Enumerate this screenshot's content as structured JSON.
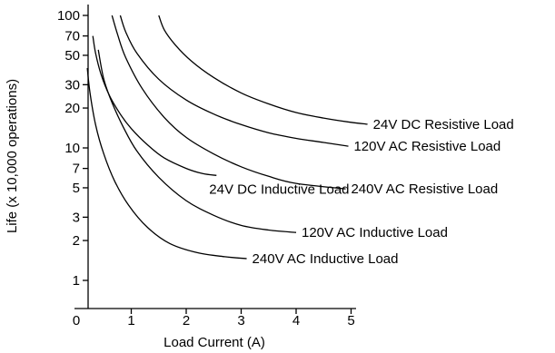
{
  "chart_data": {
    "type": "line",
    "xlabel": "Load Current (A)",
    "ylabel": "Life (x 10,000 operations)",
    "xlim": [
      0,
      5.3
    ],
    "ylim": [
      0.7,
      130
    ],
    "yscale": "log",
    "grid": false,
    "legend": "none",
    "x_ticks": [
      0,
      1,
      2,
      3,
      4,
      5
    ],
    "y_ticks": [
      1,
      2,
      3,
      5,
      7,
      10,
      20,
      30,
      50,
      70,
      100
    ],
    "series": [
      {
        "name": "24V DC  Resistive Load",
        "x": [
          1.5,
          1.6,
          1.8,
          2.1,
          2.5,
          3.0,
          3.5,
          4.0,
          4.5,
          5.0,
          5.3
        ],
        "y": [
          100,
          78,
          60,
          45,
          34,
          26,
          21.5,
          18.5,
          16.8,
          15.6,
          15.1
        ]
      },
      {
        "name": "120V AC  Resistive Load",
        "x": [
          0.8,
          0.9,
          1.1,
          1.5,
          2.0,
          2.5,
          3.0,
          3.5,
          4.0,
          4.5,
          4.95
        ],
        "y": [
          100,
          75,
          52,
          33,
          23,
          18,
          15,
          13,
          11.8,
          11,
          10.3
        ]
      },
      {
        "name": "240V AC Resistive Load",
        "x": [
          0.65,
          0.75,
          0.9,
          1.2,
          1.6,
          2.0,
          2.5,
          3.0,
          3.5,
          4.0,
          4.9
        ],
        "y": [
          100,
          72,
          48,
          28,
          17,
          12,
          9,
          7.2,
          6.1,
          5.4,
          4.9
        ]
      },
      {
        "name": "24V DC Inductive Load",
        "x": [
          0.3,
          0.35,
          0.45,
          0.6,
          0.8,
          1.0,
          1.3,
          1.6,
          2.0,
          2.3,
          2.55
        ],
        "y": [
          70,
          52,
          36,
          25,
          18,
          14,
          10.5,
          8.4,
          7,
          6.4,
          6.2
        ]
      },
      {
        "name": "120V AC Inductive Load",
        "x": [
          0.4,
          0.5,
          0.65,
          0.85,
          1.1,
          1.5,
          2.0,
          2.5,
          3.0,
          3.5,
          4.0
        ],
        "y": [
          55,
          33,
          22,
          14.5,
          9.5,
          6,
          4,
          3.1,
          2.6,
          2.4,
          2.3
        ]
      },
      {
        "name": "240V AC Inductive Load",
        "x": [
          0.2,
          0.25,
          0.35,
          0.5,
          0.7,
          0.95,
          1.3,
          1.7,
          2.2,
          2.7,
          3.1
        ],
        "y": [
          40,
          26,
          15,
          9,
          5.6,
          3.7,
          2.5,
          1.9,
          1.62,
          1.51,
          1.46
        ]
      }
    ]
  }
}
